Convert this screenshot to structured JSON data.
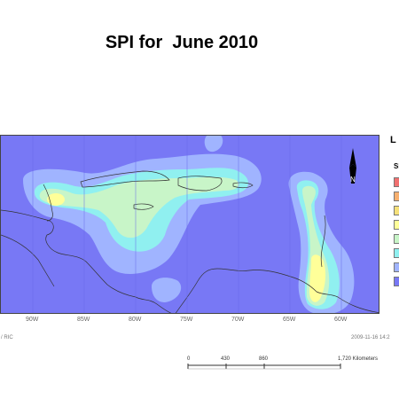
{
  "title": "SPI for  June 2010",
  "legend": {
    "title": "L",
    "subtitle": "SI",
    "class_colors": [
      "#f07070",
      "#f7b070",
      "#f5e07a",
      "#ffff99",
      "#c8f5c8",
      "#90f0f0",
      "#a0b4ff",
      "#7878f5"
    ]
  },
  "longitude_labels": [
    "90W",
    "85W",
    "80W",
    "75W",
    "70W",
    "65W",
    "60W"
  ],
  "footer_left": "/ RIC",
  "footer_right": "2009-11-16  14:2",
  "scale": {
    "labels": [
      "0",
      "430",
      "860",
      "1,720 Kilometers"
    ],
    "values_km": [
      0,
      430,
      860,
      1720
    ]
  },
  "north_arrow": {
    "label": "N"
  },
  "colors": {
    "background": "#7878f5",
    "light_blue": "#a0b4ff",
    "cyan": "#90f0f0",
    "green": "#c8f5c8",
    "yellow": "#ffff99",
    "land_outline": "#333333"
  }
}
